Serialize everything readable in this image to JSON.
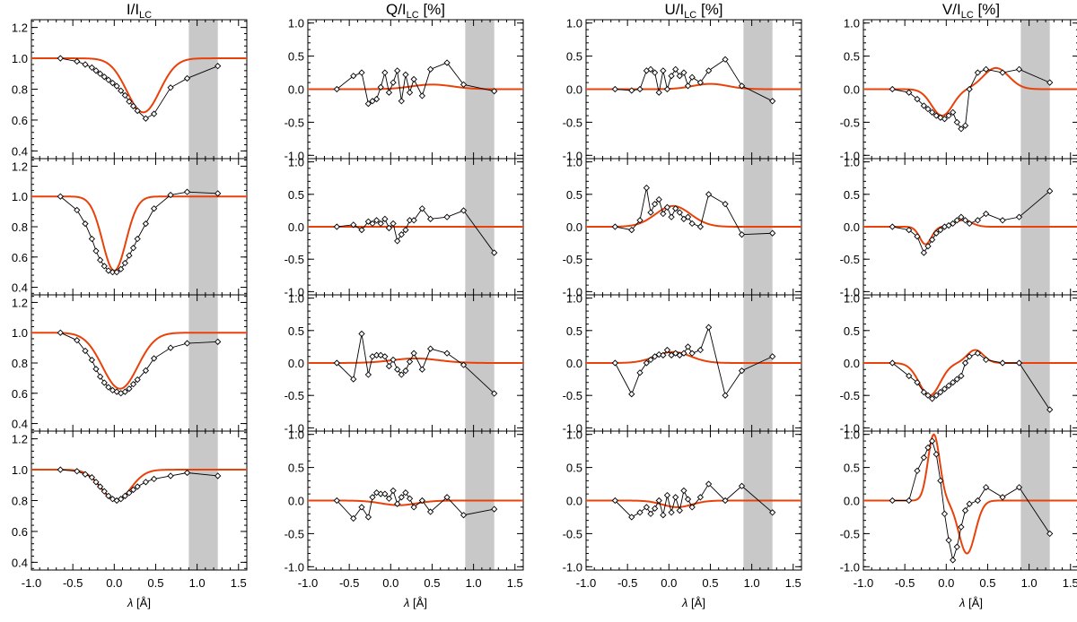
{
  "chart_data": {
    "type": "line",
    "figure_layout": "4 columns x 4 rows of subplots sharing x axis",
    "x_axis": {
      "label_symbol": "λ",
      "label_unit": "[Å]",
      "xlim": [
        -1.0,
        1.6
      ],
      "tick_labels": [
        "-1.0",
        "-0.5",
        "0.0",
        "0.5",
        "1.0",
        "1.5"
      ],
      "tick_values": [
        -1.0,
        -0.5,
        0.0,
        0.5,
        1.0,
        1.5
      ]
    },
    "shaded_band": {
      "x_range": [
        0.9,
        1.25
      ],
      "color": "#c8c8c8"
    },
    "observed_style": {
      "color": "#000000",
      "marker": "diamond"
    },
    "fit_style": {
      "color": "#e8420a"
    },
    "x_observed": [
      -0.65,
      -0.45,
      -0.35,
      -0.27,
      -0.22,
      -0.17,
      -0.12,
      -0.07,
      -0.02,
      0.03,
      0.08,
      0.13,
      0.18,
      0.23,
      0.28,
      0.38,
      0.48,
      0.68,
      0.88,
      1.25
    ],
    "columns": [
      {
        "title_main": "I/I",
        "title_sub": "LC",
        "title_suffix": "",
        "ylim": [
          0.35,
          1.25
        ],
        "yticks": [
          0.4,
          0.6,
          0.8,
          1.0,
          1.2
        ],
        "ytick_labels": [
          "0.4",
          "0.6",
          "0.8",
          "1.0",
          "1.2"
        ],
        "rows": [
          {
            "obs": [
              1.0,
              0.98,
              0.96,
              0.94,
              0.92,
              0.9,
              0.88,
              0.86,
              0.84,
              0.82,
              0.79,
              0.76,
              0.72,
              0.69,
              0.66,
              0.61,
              0.64,
              0.81,
              0.87,
              0.95
            ],
            "fit_model": {
              "base": 1.0,
              "components": [
                {
                  "a": -0.35,
                  "c": 0.35,
                  "s": 0.28
                }
              ]
            }
          },
          {
            "obs": [
              1.0,
              0.91,
              0.82,
              0.72,
              0.64,
              0.58,
              0.54,
              0.51,
              0.5,
              0.5,
              0.52,
              0.56,
              0.61,
              0.66,
              0.72,
              0.82,
              0.92,
              1.01,
              1.03,
              1.02
            ],
            "fit_model": {
              "base": 1.0,
              "components": [
                {
                  "a": -0.49,
                  "c": 0.0,
                  "s": 0.2
                }
              ]
            }
          },
          {
            "obs": [
              1.0,
              0.95,
              0.88,
              0.82,
              0.76,
              0.71,
              0.67,
              0.64,
              0.62,
              0.61,
              0.6,
              0.61,
              0.63,
              0.66,
              0.69,
              0.75,
              0.83,
              0.9,
              0.93,
              0.94
            ],
            "fit_model": {
              "base": 1.0,
              "components": [
                {
                  "a": -0.37,
                  "c": 0.07,
                  "s": 0.3
                }
              ]
            }
          },
          {
            "obs": [
              1.0,
              0.99,
              0.97,
              0.95,
              0.92,
              0.89,
              0.86,
              0.83,
              0.81,
              0.8,
              0.81,
              0.83,
              0.85,
              0.87,
              0.89,
              0.92,
              0.94,
              0.96,
              0.98,
              0.96
            ],
            "fit_model": {
              "base": 1.0,
              "components": [
                {
                  "a": -0.2,
                  "c": 0.02,
                  "s": 0.25
                }
              ]
            }
          }
        ]
      },
      {
        "title_main": "Q/I",
        "title_sub": "LC",
        "title_suffix": " [%]",
        "ylim": [
          -1.05,
          1.05
        ],
        "yticks": [
          -1.0,
          -0.5,
          0.0,
          0.5,
          1.0
        ],
        "ytick_labels": [
          "-1.0",
          "-0.5",
          "0.0",
          "0.5",
          "1.0"
        ],
        "rows": [
          {
            "obs": [
              0.0,
              0.2,
              0.25,
              -0.22,
              -0.18,
              -0.15,
              0.03,
              0.25,
              -0.05,
              0.1,
              0.28,
              -0.18,
              0.22,
              -0.05,
              0.15,
              -0.1,
              0.3,
              0.4,
              0.07,
              -0.03
            ],
            "fit_model": {
              "base": 0.0,
              "components": [
                {
                  "a": 0.07,
                  "c": 0.5,
                  "s": 0.35
                }
              ]
            }
          },
          {
            "obs": [
              0.0,
              0.03,
              -0.05,
              0.08,
              0.05,
              0.1,
              0.05,
              0.12,
              -0.02,
              0.05,
              -0.22,
              -0.12,
              -0.05,
              0.1,
              0.1,
              0.28,
              0.12,
              0.15,
              0.25,
              -0.4
            ],
            "fit_model": {
              "base": 0.0,
              "components": [
                {
                  "a": 0.0,
                  "c": 0.5,
                  "s": 0.35
                }
              ]
            }
          },
          {
            "obs": [
              0.0,
              -0.25,
              0.45,
              -0.18,
              0.1,
              0.12,
              0.12,
              0.1,
              -0.05,
              0.05,
              -0.1,
              -0.18,
              -0.12,
              0.02,
              0.15,
              -0.1,
              0.22,
              0.15,
              -0.03,
              -0.47
            ],
            "fit_model": {
              "base": 0.0,
              "components": [
                {
                  "a": 0.07,
                  "c": 0.3,
                  "s": 0.4
                }
              ]
            }
          },
          {
            "obs": [
              0.0,
              -0.27,
              -0.1,
              -0.25,
              0.05,
              0.12,
              0.1,
              0.1,
              0.03,
              0.15,
              -0.05,
              0.05,
              0.12,
              0.03,
              -0.1,
              0.0,
              -0.17,
              0.05,
              -0.22,
              -0.13
            ],
            "fit_model": {
              "base": 0.0,
              "components": [
                {
                  "a": -0.07,
                  "c": 0.1,
                  "s": 0.3
                }
              ]
            }
          }
        ]
      },
      {
        "title_main": "U/I",
        "title_sub": "LC",
        "title_suffix": " [%]",
        "ylim": [
          -1.05,
          1.05
        ],
        "yticks": [
          -1.0,
          -0.5,
          0.0,
          0.5,
          1.0
        ],
        "ytick_labels": [
          "-1.0",
          "-0.5",
          "0.0",
          "0.5",
          "1.0"
        ],
        "rows": [
          {
            "obs": [
              0.0,
              -0.02,
              0.0,
              0.28,
              0.3,
              0.25,
              -0.05,
              0.28,
              0.0,
              0.2,
              0.3,
              0.2,
              0.25,
              0.05,
              0.18,
              0.1,
              0.28,
              0.45,
              0.05,
              -0.18
            ],
            "fit_model": {
              "base": 0.0,
              "components": [
                {
                  "a": 0.08,
                  "c": 0.5,
                  "s": 0.3
                }
              ]
            }
          },
          {
            "obs": [
              0.0,
              -0.05,
              0.1,
              0.6,
              0.22,
              0.35,
              0.42,
              0.2,
              0.3,
              0.15,
              0.28,
              0.22,
              0.12,
              0.15,
              0.05,
              0.0,
              0.5,
              0.35,
              -0.12,
              -0.1
            ],
            "fit_model": {
              "base": 0.0,
              "components": [
                {
                  "a": 0.32,
                  "c": 0.05,
                  "s": 0.3
                }
              ]
            }
          },
          {
            "obs": [
              0.0,
              -0.48,
              -0.15,
              0.0,
              0.05,
              0.1,
              0.13,
              0.12,
              0.2,
              0.12,
              0.15,
              0.12,
              0.15,
              0.25,
              0.15,
              0.2,
              0.55,
              -0.5,
              -0.12,
              0.1
            ],
            "fit_model": {
              "base": 0.0,
              "components": [
                {
                  "a": 0.17,
                  "c": 0.05,
                  "s": 0.3
                }
              ]
            }
          },
          {
            "obs": [
              0.0,
              -0.25,
              -0.18,
              -0.1,
              -0.2,
              -0.12,
              0.0,
              -0.22,
              0.08,
              -0.18,
              0.05,
              -0.15,
              0.15,
              0.02,
              -0.1,
              0.05,
              0.25,
              0.0,
              0.22,
              -0.18
            ],
            "fit_model": {
              "base": 0.0,
              "components": [
                {
                  "a": -0.1,
                  "c": 0.1,
                  "s": 0.25
                }
              ]
            }
          }
        ]
      },
      {
        "title_main": "V/I",
        "title_sub": "LC",
        "title_suffix": " [%]",
        "ylim": [
          -1.05,
          1.05
        ],
        "yticks": [
          -1.0,
          -0.5,
          0.0,
          0.5,
          1.0
        ],
        "ytick_labels": [
          "-1.0",
          "-0.5",
          "0.0",
          "0.5",
          "1.0"
        ],
        "rows": [
          {
            "obs": [
              0.0,
              -0.05,
              -0.15,
              -0.25,
              -0.3,
              -0.35,
              -0.4,
              -0.43,
              -0.45,
              -0.4,
              -0.35,
              -0.5,
              -0.6,
              -0.55,
              0.0,
              0.25,
              0.3,
              0.25,
              0.3,
              0.1
            ],
            "fit_model": {
              "base": 0.0,
              "components": [
                {
                  "a": -0.4,
                  "c": -0.05,
                  "s": 0.18
                },
                {
                  "a": 0.32,
                  "c": 0.6,
                  "s": 0.22
                }
              ]
            }
          },
          {
            "obs": [
              0.0,
              -0.05,
              -0.15,
              -0.4,
              -0.3,
              -0.2,
              -0.1,
              -0.05,
              0.0,
              0.02,
              0.05,
              0.1,
              0.15,
              0.1,
              0.05,
              0.1,
              0.2,
              0.1,
              0.15,
              0.55
            ],
            "fit_model": {
              "base": 0.0,
              "components": [
                {
                  "a": -0.27,
                  "c": -0.25,
                  "s": 0.1
                },
                {
                  "a": 0.1,
                  "c": 0.2,
                  "s": 0.15
                }
              ]
            }
          },
          {
            "obs": [
              0.0,
              -0.2,
              -0.3,
              -0.45,
              -0.5,
              -0.55,
              -0.5,
              -0.45,
              -0.4,
              -0.35,
              -0.3,
              -0.25,
              -0.2,
              0.0,
              0.1,
              0.15,
              0.05,
              0.0,
              0.0,
              -0.72
            ],
            "fit_model": {
              "base": 0.0,
              "components": [
                {
                  "a": -0.5,
                  "c": -0.2,
                  "s": 0.18
                },
                {
                  "a": 0.2,
                  "c": 0.35,
                  "s": 0.14
                }
              ]
            }
          },
          {
            "obs": [
              0.0,
              0.0,
              0.45,
              0.65,
              0.8,
              0.9,
              0.7,
              0.3,
              -0.2,
              -0.6,
              -0.9,
              -0.7,
              -0.4,
              -0.15,
              -0.05,
              0.0,
              0.2,
              0.05,
              0.2,
              -0.5
            ],
            "fit_model": {
              "base": 0.0,
              "components": [
                {
                  "a": 1.0,
                  "c": -0.15,
                  "s": 0.1
                },
                {
                  "a": -0.8,
                  "c": 0.25,
                  "s": 0.14
                }
              ]
            }
          }
        ]
      }
    ]
  }
}
